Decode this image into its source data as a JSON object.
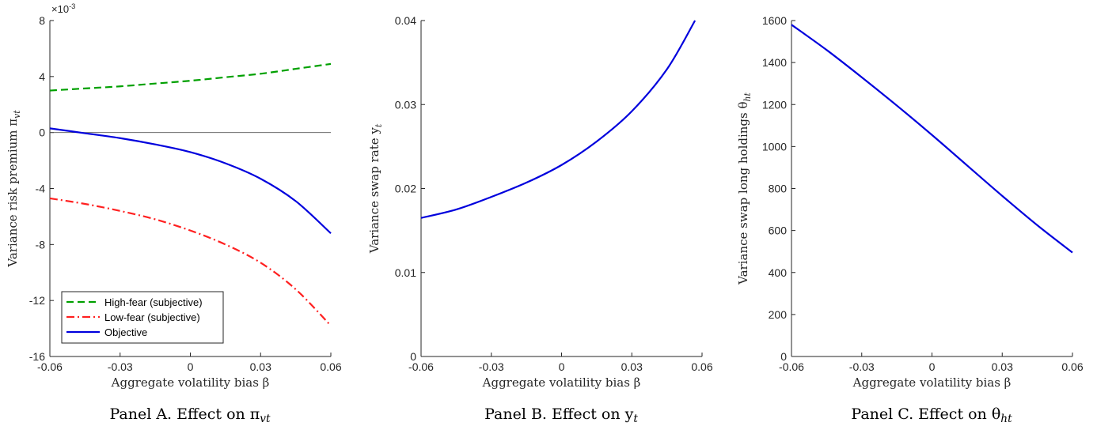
{
  "chart_data": [
    {
      "type": "line",
      "caption": "Panel A. Effect on π_{vt}",
      "xlabel": "Aggregate volatility bias β",
      "ylabel": "Variance risk premium π_{vt}",
      "y_multiplier": "×10^{-3}",
      "xlim": [
        -0.06,
        0.06
      ],
      "ylim": [
        -16,
        8
      ],
      "xticks": [
        "-0.06",
        "-0.03",
        "0",
        "0.03",
        "0.06"
      ],
      "yticks": [
        "8",
        "4",
        "0",
        "-4",
        "-8",
        "-12",
        "-16"
      ],
      "zero_line": true,
      "grid": false,
      "legend_position": "bottom-left",
      "x": [
        -0.06,
        -0.045,
        -0.03,
        -0.015,
        0,
        0.015,
        0.03,
        0.045,
        0.06
      ],
      "series": [
        {
          "name": "High-fear (subjective)",
          "color": "#00a000",
          "style": "dashed",
          "values": [
            3.0,
            3.15,
            3.3,
            3.5,
            3.7,
            3.95,
            4.2,
            4.55,
            4.9
          ]
        },
        {
          "name": "Low-fear (subjective)",
          "color": "#ff2020",
          "style": "dashdot",
          "values": [
            -4.7,
            -5.1,
            -5.6,
            -6.2,
            -7.0,
            -8.0,
            -9.3,
            -11.2,
            -13.8
          ]
        },
        {
          "name": "Objective",
          "color": "#0000dd",
          "style": "solid",
          "values": [
            0.3,
            -0.05,
            -0.4,
            -0.85,
            -1.4,
            -2.2,
            -3.3,
            -4.9,
            -7.2
          ]
        }
      ]
    },
    {
      "type": "line",
      "caption": "Panel B. Effect on y_t",
      "xlabel": "Aggregate volatility bias β",
      "ylabel": "Variance swap rate y_t",
      "xlim": [
        -0.06,
        0.06
      ],
      "ylim": [
        0,
        0.04
      ],
      "xticks": [
        "-0.06",
        "-0.03",
        "0",
        "0.03",
        "0.06"
      ],
      "yticks": [
        "0.04",
        "0.03",
        "0.02",
        "0.01",
        "0"
      ],
      "grid": false,
      "x": [
        -0.06,
        -0.045,
        -0.03,
        -0.015,
        0,
        0.015,
        0.03,
        0.045,
        0.057
      ],
      "series": [
        {
          "color": "#0000dd",
          "style": "solid",
          "values": [
            0.0165,
            0.0175,
            0.019,
            0.0207,
            0.0228,
            0.0256,
            0.0292,
            0.0342,
            0.04
          ]
        }
      ]
    },
    {
      "type": "line",
      "caption": "Panel C. Effect on θ_{ht}",
      "xlabel": "Aggregate volatility bias β",
      "ylabel": "Variance swap long holdings θ_{ht}",
      "xlim": [
        -0.06,
        0.06
      ],
      "ylim": [
        0,
        1600
      ],
      "xticks": [
        "-0.06",
        "-0.03",
        "0",
        "0.03",
        "0.06"
      ],
      "yticks": [
        "1600",
        "1400",
        "1200",
        "1000",
        "800",
        "600",
        "400",
        "200",
        "0"
      ],
      "grid": false,
      "x": [
        -0.06,
        -0.045,
        -0.03,
        -0.015,
        0,
        0.015,
        0.03,
        0.045,
        0.06
      ],
      "series": [
        {
          "color": "#0000dd",
          "style": "solid",
          "values": [
            1580,
            1460,
            1330,
            1195,
            1055,
            910,
            765,
            625,
            495
          ]
        }
      ]
    }
  ]
}
